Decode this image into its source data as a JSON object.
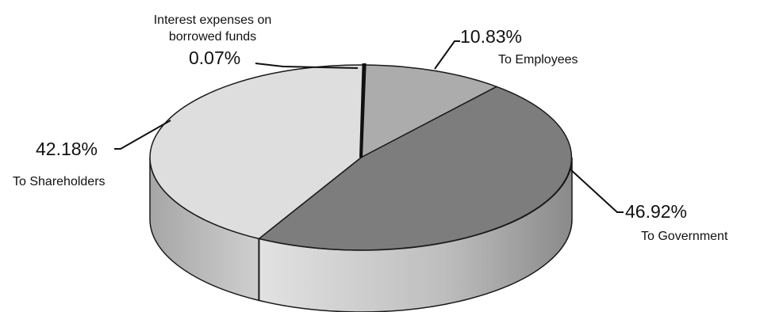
{
  "chart_data": {
    "type": "pie",
    "style": "3d-exploded-ellipse",
    "categories": [
      "To Employees",
      "To Government",
      "To Shareholders",
      "Interest expenses on borrowed funds"
    ],
    "values": [
      10.83,
      46.92,
      42.18,
      0.07
    ],
    "value_labels": [
      "10.83%",
      "46.92%",
      "42.18%",
      "0.07%"
    ],
    "annotations": {
      "interest_line1": "Interest expenses on",
      "interest_line2": "borrowed funds"
    },
    "colors": {
      "employees": "#acacac",
      "government": "#7d7d7d",
      "shareholders": "#dedede",
      "interest": "#111111",
      "outline": "#1a1a1a"
    }
  }
}
